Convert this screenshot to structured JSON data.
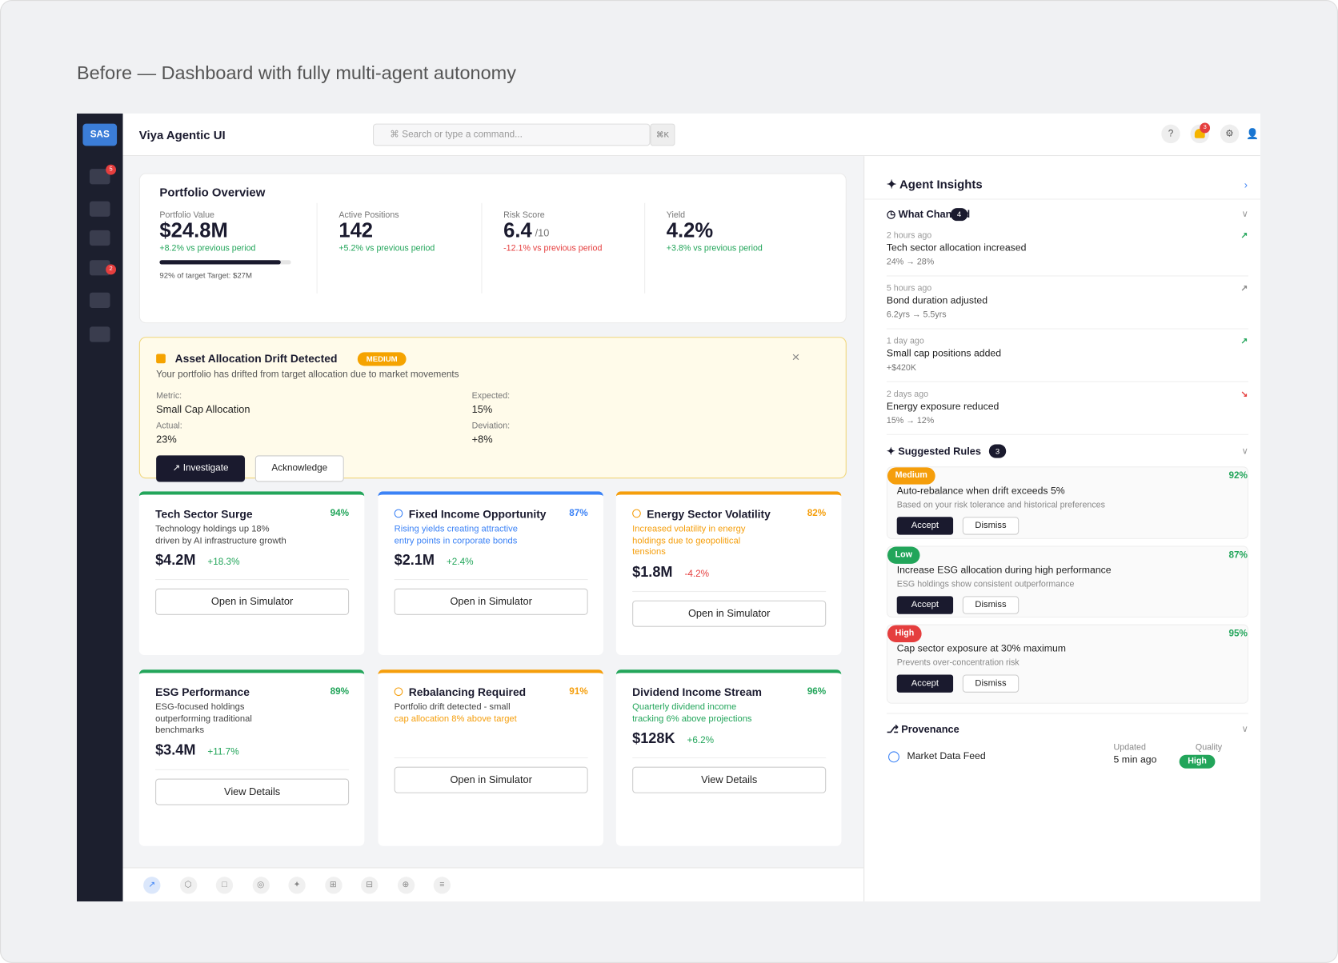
{
  "header": {
    "caption": "Before — Dashboard with fully multi-agent autonomy"
  },
  "app": {
    "logo": "SAS",
    "title": "Viya Agentic UI",
    "search": "⌘ Search or type a command...",
    "shortcut": "⌘K",
    "help": "?",
    "notifications": "3",
    "settings": "⚙",
    "user": "👤",
    "sidebar_badges": [
      "5",
      "2"
    ]
  },
  "overview": {
    "title": "Portfolio Overview",
    "metrics": [
      {
        "label": "Portfolio Value",
        "value": "$24.8M",
        "change": "+8.2% vs previous period",
        "color": "#22a55a"
      },
      {
        "label": "Active Positions",
        "value": "142",
        "change": "+5.2% vs previous period",
        "color": "#22a55a"
      },
      {
        "label": "Risk Score",
        "value": "6.4",
        "suffix": "/10",
        "change": "-12.1% vs previous period",
        "color": "#e53e3e"
      },
      {
        "label": "Yield",
        "value": "4.2%",
        "change": "+3.8% vs previous period",
        "color": "#22a55a"
      }
    ],
    "progress": {
      "value": 92,
      "label": "92% of target Target: $27M"
    }
  },
  "alert": {
    "title": "Asset Allocation Drift Detected",
    "severity": "MEDIUM",
    "close": "×",
    "description": "Your portfolio has drifted from target allocation due to market movements",
    "fields": [
      {
        "label": "Metric:",
        "value": "Small Cap Allocation"
      },
      {
        "label": "Expected:",
        "value": "15%"
      },
      {
        "label": "Actual:",
        "value": "23%"
      },
      {
        "label": "Deviation:",
        "value": "+8%"
      }
    ],
    "actions": [
      "↗ Investigate",
      "Acknowledge"
    ]
  },
  "cards": [
    {
      "title": "Tech Sector Surge",
      "confidence": "94%",
      "description": "Technology holdings up 18% driven by AI infrastructure growth",
      "description_color": "#444",
      "value": "$4.2M",
      "change": "+18.3%",
      "change_color": "#22a55a",
      "action": "Open in Simulator",
      "color": "#22a55a"
    },
    {
      "title": "Fixed Income Opportunity",
      "confidence": "87%",
      "description": "Rising yields creating attractive entry points in corporate bonds",
      "description_color": "#3b82f6",
      "value": "$2.1M",
      "change": "+2.4%",
      "change_color": "#22a55a",
      "action": "Open in Simulator",
      "color": "#3b82f6",
      "ring": true
    },
    {
      "title": "Energy Sector Volatility",
      "confidence": "82%",
      "description": "Increased volatility in energy holdings due to geopolitical tensions",
      "description_color": "#f59e0b",
      "value": "$1.8M",
      "change": "-4.2%",
      "change_color": "#e53e3e",
      "action": "Open in Simulator",
      "color": "#f59e0b",
      "ring": true
    },
    {
      "title": "ESG Performance",
      "confidence": "89%",
      "description": "ESG-focused holdings outperforming traditional benchmarks",
      "description_color": "#444",
      "value": "$3.4M",
      "change": "+11.7%",
      "change_color": "#22a55a",
      "action": "View Details",
      "color": "#22a55a"
    },
    {
      "title": "Rebalancing Required",
      "confidence": "91%",
      "description": "Portfolio drift detected - small",
      "description_color": "#444",
      "description_highlight": "cap allocation 8% above target",
      "action": "Open in Simulator",
      "color": "#f59e0b",
      "ring": true
    },
    {
      "title": "Dividend Income Stream",
      "confidence": "96%",
      "description": "Quarterly dividend income tracking 6% above projections",
      "description_color": "#22a55a",
      "value": "$128K",
      "change": "+6.2%",
      "change_color": "#22a55a",
      "action": "View Details",
      "color": "#22a55a"
    }
  ],
  "insights": {
    "title": "✦ Agent Insights",
    "expand": "›",
    "changes": {
      "title": "◷ What Changed",
      "count": "4",
      "toggle": "∨",
      "items": [
        {
          "time": "2 hours ago",
          "title": "Tech sector allocation increased",
          "detail": "24% → 28%",
          "arrow": "↗",
          "color": "#22a55a"
        },
        {
          "time": "5 hours ago",
          "title": "Bond duration adjusted",
          "detail": "6.2yrs → 5.5yrs",
          "arrow": "↗",
          "color": "#888"
        },
        {
          "time": "1 day ago",
          "title": "Small cap positions added",
          "detail": "+$420K",
          "arrow": "↗",
          "color": "#22a55a"
        },
        {
          "time": "2 days ago",
          "title": "Energy exposure reduced",
          "detail": "15% → 12%",
          "arrow": "↘",
          "color": "#e53e3e"
        }
      ]
    },
    "rules": {
      "title": "✦ Suggested Rules",
      "count": "3",
      "toggle": "∨",
      "items": [
        {
          "priority": "Medium",
          "color": "#f59e0b",
          "confidence": "92%",
          "title": "Auto-rebalance when drift exceeds 5%",
          "description": "Based on your risk tolerance and historical preferences",
          "accept": "Accept",
          "dismiss": "Dismiss"
        },
        {
          "priority": "Low",
          "color": "#22a55a",
          "confidence": "87%",
          "title": "Increase ESG allocation during high performance",
          "description": "ESG holdings show consistent outperformance",
          "accept": "Accept",
          "dismiss": "Dismiss"
        },
        {
          "priority": "High",
          "color": "#e53e3e",
          "confidence": "95%",
          "title": "Cap sector exposure at 30% maximum",
          "description": "Prevents over-concentration risk",
          "accept": "Accept",
          "dismiss": "Dismiss"
        }
      ]
    },
    "provenance": {
      "title": "⎇ Provenance",
      "toggle": "∨",
      "source": "Market Data Feed",
      "updated_label": "Updated",
      "updated": "5 min ago",
      "quality_label": "Quality",
      "quality": "High"
    }
  },
  "toolbar": [
    "↗",
    "⬡",
    "□",
    "◎",
    "✦",
    "⊞",
    "⊟",
    "⊕",
    "≡"
  ]
}
